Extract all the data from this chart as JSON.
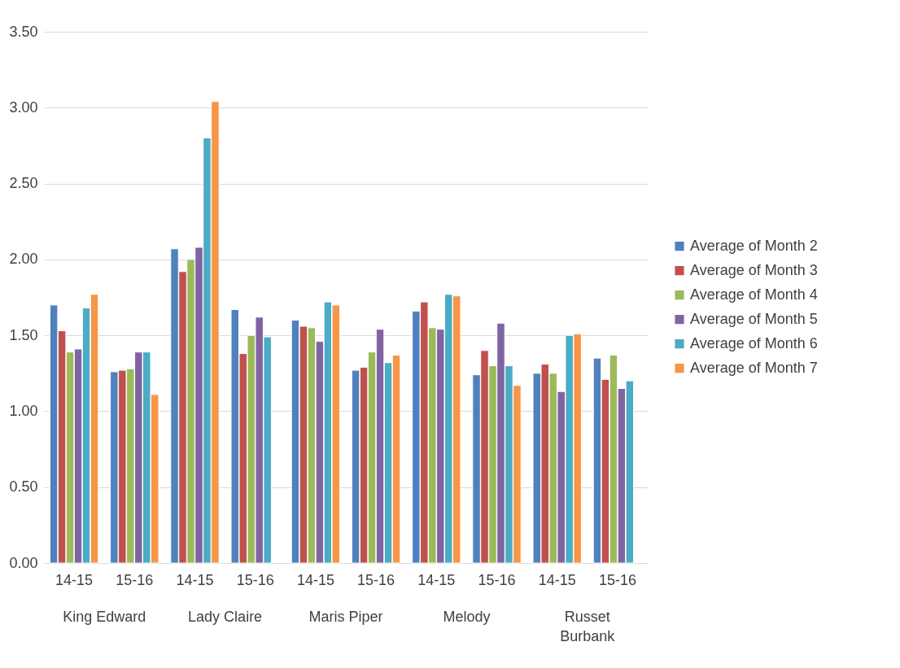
{
  "chart_data": {
    "type": "bar",
    "categories": [
      "14-15",
      "15-16",
      "14-15",
      "15-16",
      "14-15",
      "15-16",
      "14-15",
      "15-16",
      "14-15",
      "15-16"
    ],
    "series": [
      {
        "name": "Average of Month 2",
        "color": "#4f81bd",
        "values": [
          1.7,
          1.26,
          2.07,
          1.67,
          1.6,
          1.27,
          1.66,
          1.24,
          1.25,
          1.35
        ]
      },
      {
        "name": "Average of Month 3",
        "color": "#c0504d",
        "values": [
          1.53,
          1.27,
          1.92,
          1.38,
          1.56,
          1.29,
          1.72,
          1.4,
          1.31,
          1.21
        ]
      },
      {
        "name": "Average of Month 4",
        "color": "#9bbb59",
        "values": [
          1.39,
          1.28,
          2.0,
          1.5,
          1.55,
          1.39,
          1.55,
          1.3,
          1.25,
          1.37
        ]
      },
      {
        "name": "Average of Month 5",
        "color": "#8064a2",
        "values": [
          1.41,
          1.39,
          2.08,
          1.62,
          1.46,
          1.54,
          1.54,
          1.58,
          1.13,
          1.15
        ]
      },
      {
        "name": "Average of Month 6",
        "color": "#4bacc6",
        "values": [
          1.68,
          1.39,
          2.8,
          1.49,
          1.72,
          1.32,
          1.77,
          1.3,
          1.5,
          1.2
        ]
      },
      {
        "name": "Average of Month 7",
        "color": "#f79646",
        "values": [
          1.77,
          1.11,
          3.04,
          null,
          1.7,
          1.37,
          1.76,
          1.17,
          1.51,
          null
        ]
      }
    ],
    "annotations": [
      "King Edward",
      "Lady Claire",
      "Maris Piper",
      "Melody",
      "Russet\nBurbank"
    ],
    "ylim": [
      0,
      3.5
    ],
    "yticks": [
      {
        "value": 0,
        "label": "0.00"
      },
      {
        "value": 0.5,
        "label": "0.50"
      },
      {
        "value": 1,
        "label": "1.00"
      },
      {
        "value": 1.5,
        "label": "1.50"
      },
      {
        "value": 2,
        "label": "2.00"
      },
      {
        "value": 2.5,
        "label": "2.50"
      },
      {
        "value": 3,
        "label": "3.00"
      },
      {
        "value": 3.5,
        "label": "3.50"
      }
    ],
    "grid": "y",
    "legend": "right"
  }
}
